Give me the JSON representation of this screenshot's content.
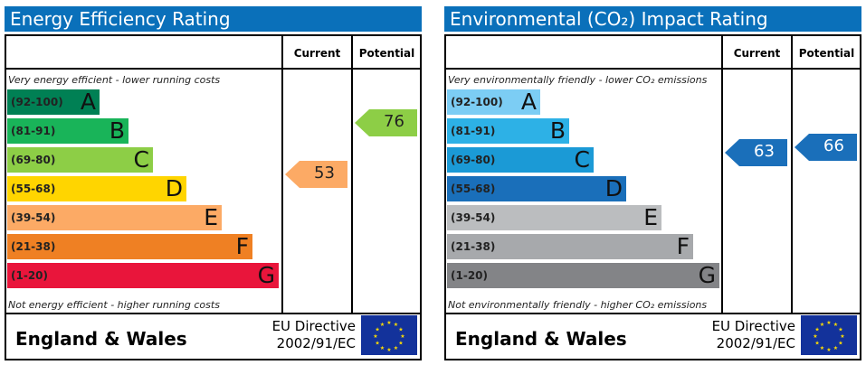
{
  "panels": [
    {
      "title": "Energy Efficiency Rating",
      "col_current": "Current",
      "col_potential": "Potential",
      "top_note": "Very energy efficient - lower running costs",
      "bottom_note": "Not energy efficient - higher running costs",
      "bands": [
        {
          "range": "(92-100)",
          "letter": "A",
          "color": "#008054"
        },
        {
          "range": "(81-91)",
          "letter": "B",
          "color": "#19b459"
        },
        {
          "range": "(69-80)",
          "letter": "C",
          "color": "#8dce46"
        },
        {
          "range": "(55-68)",
          "letter": "D",
          "color": "#ffd500"
        },
        {
          "range": "(39-54)",
          "letter": "E",
          "color": "#fcaa65"
        },
        {
          "range": "(21-38)",
          "letter": "F",
          "color": "#ef8023"
        },
        {
          "range": "(1-20)",
          "letter": "G",
          "color": "#e9153b"
        }
      ],
      "current": {
        "value": "53",
        "color": "#fcaa65"
      },
      "potential": {
        "value": "76",
        "color": "#8dce46"
      },
      "country": "England & Wales",
      "directive_line1": "EU Directive",
      "directive_line2": "2002/91/EC"
    },
    {
      "title": "Environmental (CO₂) Impact Rating",
      "col_current": "Current",
      "col_potential": "Potential",
      "top_note": "Very environmentally friendly - lower CO₂ emissions",
      "bottom_note": "Not environmentally friendly - higher CO₂ emissions",
      "bands": [
        {
          "range": "(92-100)",
          "letter": "A",
          "color": "#7ccdf4"
        },
        {
          "range": "(81-91)",
          "letter": "B",
          "color": "#2db1e6"
        },
        {
          "range": "(69-80)",
          "letter": "C",
          "color": "#1b9ad6"
        },
        {
          "range": "(55-68)",
          "letter": "D",
          "color": "#1a6fba"
        },
        {
          "range": "(39-54)",
          "letter": "E",
          "color": "#bbbdbf"
        },
        {
          "range": "(21-38)",
          "letter": "F",
          "color": "#a7a9ac"
        },
        {
          "range": "(1-20)",
          "letter": "G",
          "color": "#838487"
        }
      ],
      "current": {
        "value": "63",
        "color": "#1a6fba"
      },
      "potential": {
        "value": "66",
        "color": "#1a6fba"
      },
      "country": "England & Wales",
      "directive_line1": "EU Directive",
      "directive_line2": "2002/91/EC"
    }
  ]
}
